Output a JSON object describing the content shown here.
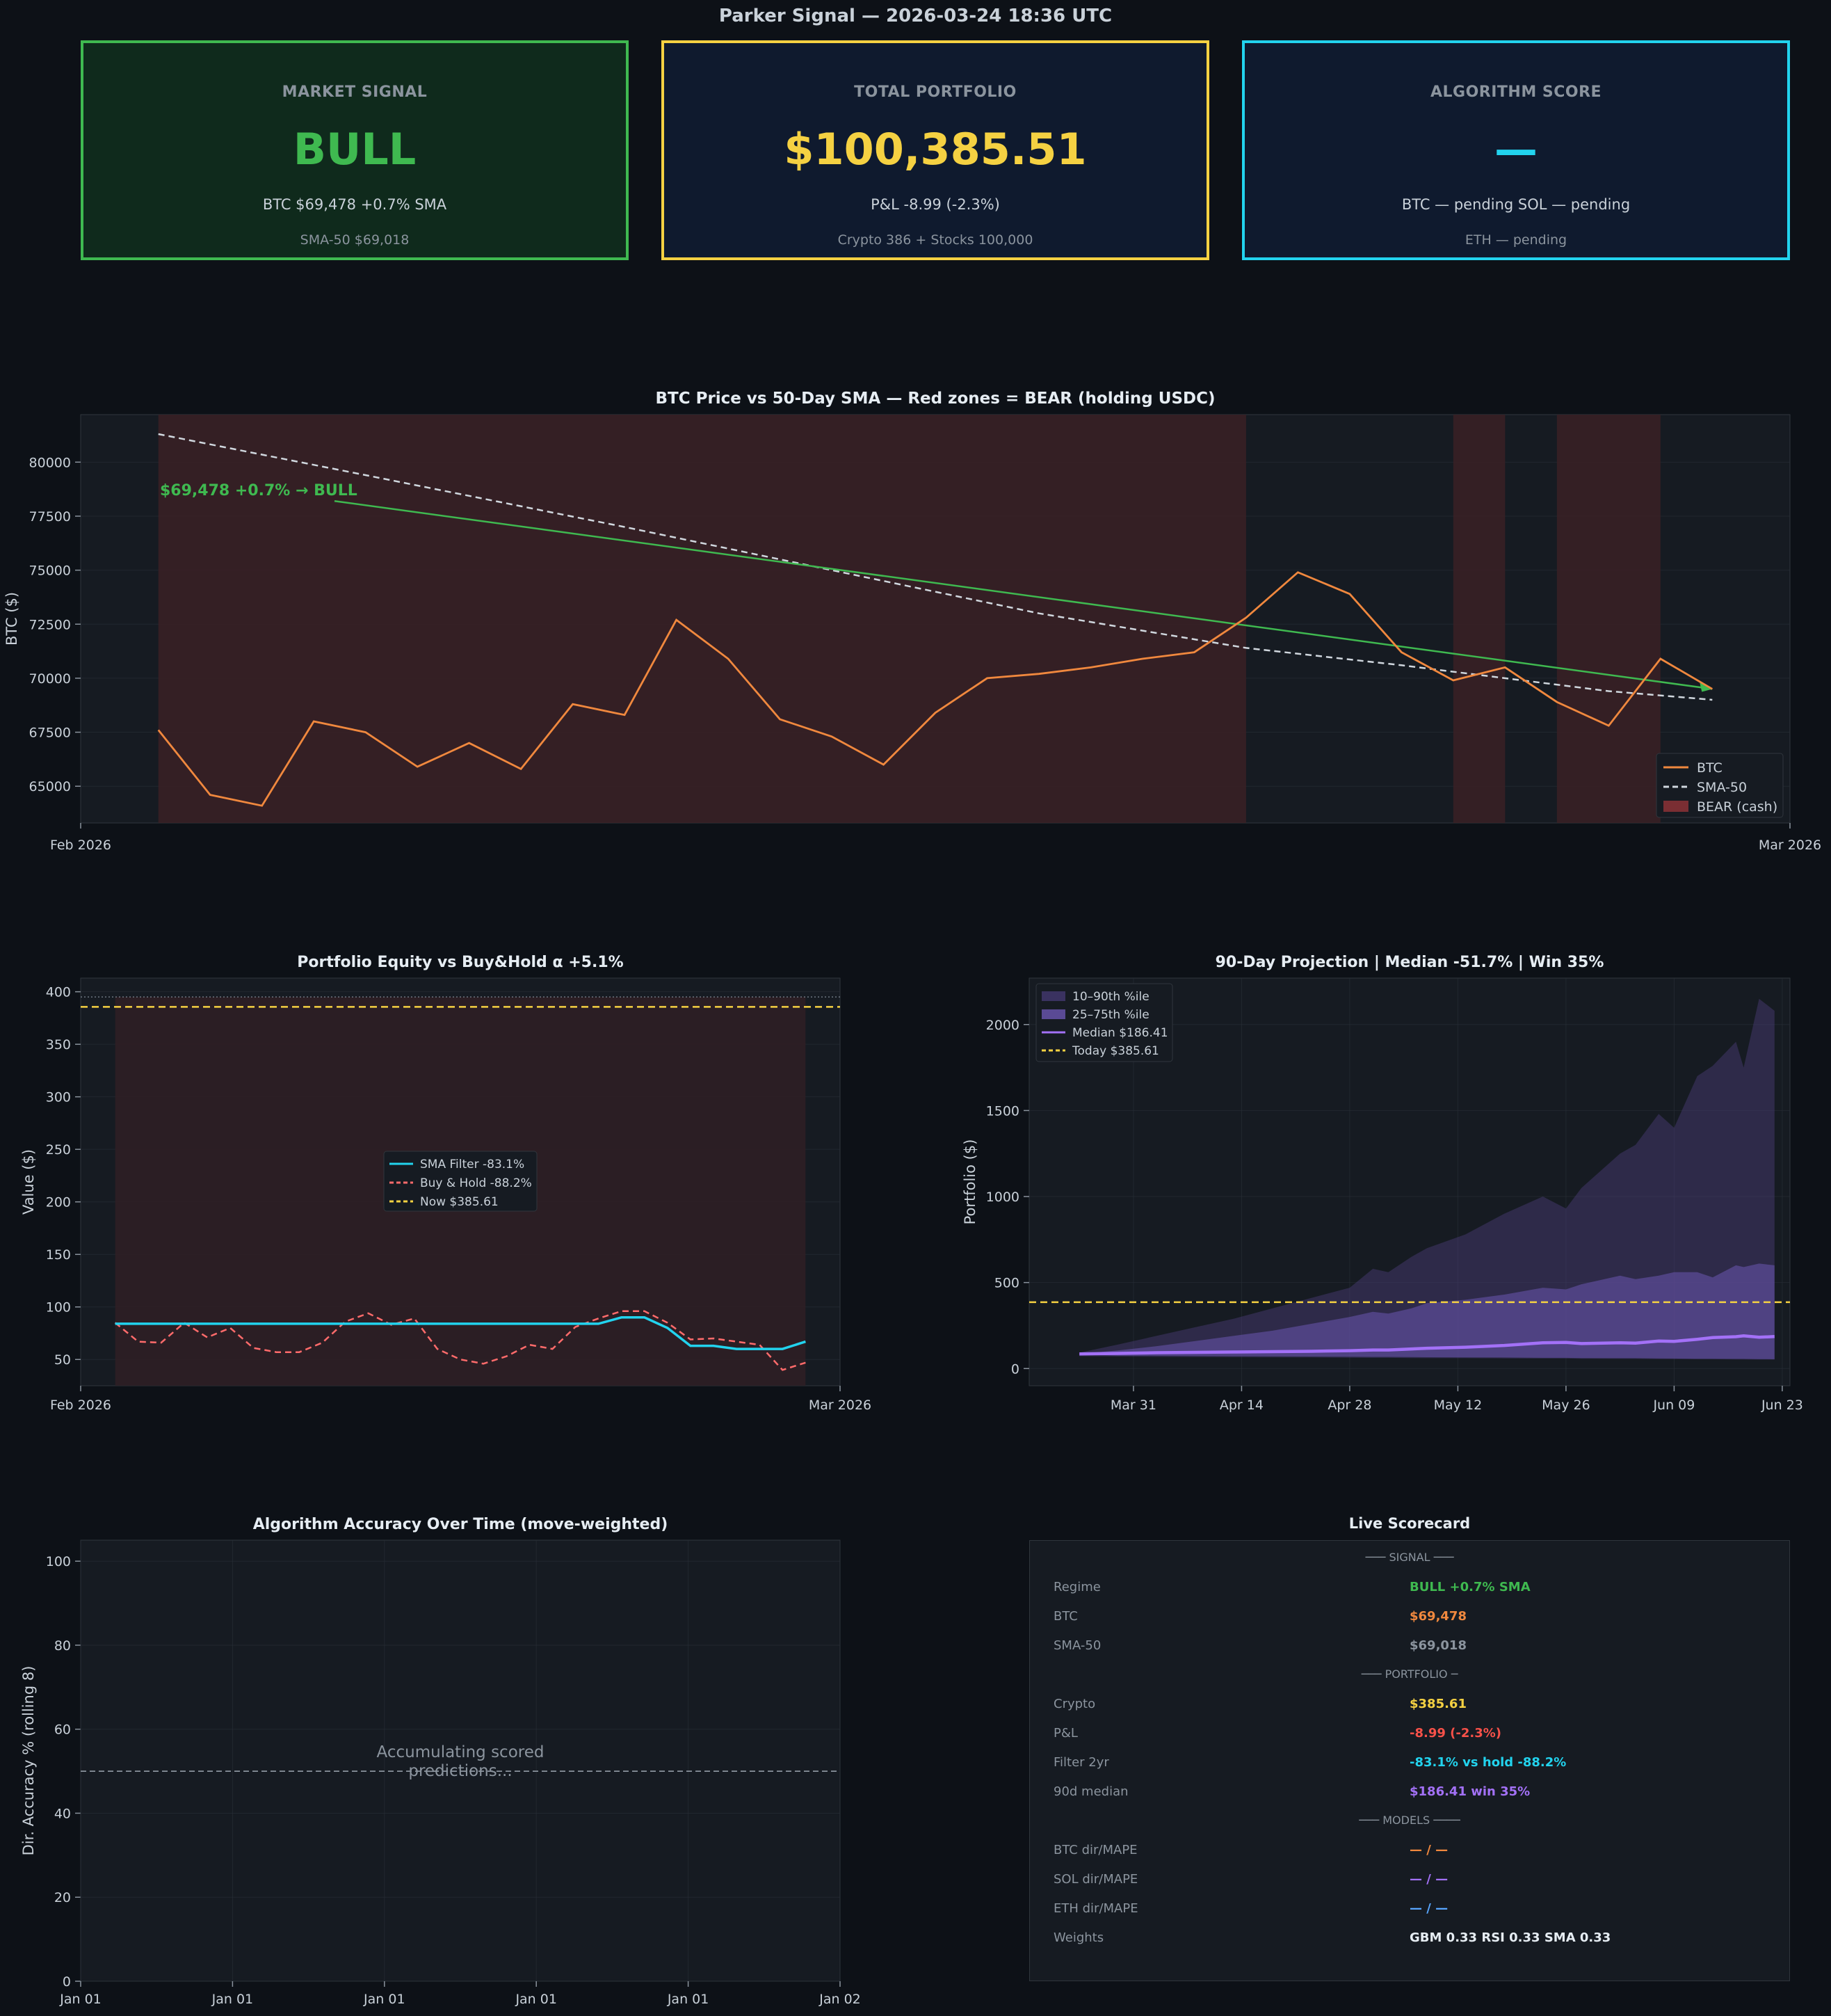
{
  "header": {
    "title": "Parker Signal  —  2026-03-24 18:36 UTC"
  },
  "cards": {
    "signal": {
      "label": "MARKET SIGNAL",
      "value": "BULL",
      "line1": "BTC $69,478   +0.7% SMA",
      "line2": "SMA-50  $69,018"
    },
    "portfolio": {
      "label": "TOTAL PORTFOLIO",
      "value": "$100,385.51",
      "line1": "P&L  -8.99  (-2.3%)",
      "line2": "Crypto 386 + Stocks 100,000"
    },
    "algo": {
      "label": "ALGORITHM SCORE",
      "value": "—",
      "line1": "BTC — pending   SOL — pending",
      "line2": "ETH — pending"
    }
  },
  "colors": {
    "bg": "#0d1117",
    "panel": "#161b22",
    "green": "#3fb950",
    "yellow": "#f5d142",
    "cyan": "#22d3ee",
    "orange": "#f0883e",
    "red": "#f85149",
    "purple": "#a371f7",
    "bear": "#3a2024"
  },
  "chart_data": [
    {
      "id": "btc",
      "type": "line",
      "title": "BTC Price vs 50-Day SMA  — Red zones = BEAR (holding USDC)",
      "ylabel": "BTC ($)",
      "xlabel": "",
      "ylim": [
        63300,
        82200
      ],
      "yticks": [
        65000,
        67500,
        70000,
        72500,
        75000,
        77500,
        80000
      ],
      "ytick_labels": [
        "65000",
        "67500",
        "70000",
        "72500",
        "75000",
        "77500",
        "80000"
      ],
      "xlim": [
        0,
        33
      ],
      "xtick_labels": [
        "Feb 2026",
        "Mar 2026"
      ],
      "series": [
        {
          "name": "BTC",
          "x": [
            1.5,
            2.5,
            3.5,
            4.5,
            5.5,
            6.5,
            7.5,
            8.5,
            9.5,
            10.5,
            11.5,
            12.5,
            13.5,
            14.5,
            15.5,
            16.5,
            17.5,
            18.5,
            19.5,
            20.5,
            21.5,
            22.5,
            23.5,
            24.5,
            25.5,
            26.5,
            27.5,
            28.5,
            29.5,
            30.5,
            31.5
          ],
          "values": [
            67600,
            64600,
            64100,
            68000,
            67500,
            65900,
            67000,
            65800,
            68800,
            68300,
            72700,
            70900,
            68100,
            67300,
            66000,
            68400,
            70000,
            70200,
            70500,
            70900,
            71200,
            72800,
            74900,
            73900,
            71200,
            69900,
            70500,
            68900,
            67800,
            70900,
            69500
          ]
        },
        {
          "name": "SMA-50",
          "x": [
            1.5,
            5.5,
            10.5,
            14.5,
            18.5,
            22.5,
            25.5,
            29.5,
            31.5
          ],
          "values": [
            81300,
            79400,
            77000,
            75000,
            73000,
            71400,
            70600,
            69400,
            69000
          ]
        }
      ],
      "trend": {
        "x": [
          4.9,
          31.5
        ],
        "values": [
          78200,
          69500
        ]
      },
      "annotation": "$69,478  +0.7%  →  BULL",
      "bear_zones": [
        [
          1.5,
          22.5
        ],
        [
          26.5,
          27.5
        ],
        [
          28.5,
          30.5
        ]
      ],
      "legend": [
        "BTC",
        "SMA-50",
        "BEAR (cash)"
      ]
    },
    {
      "id": "equity",
      "type": "line",
      "title": "Portfolio Equity vs Buy&Hold  α +5.1%",
      "ylabel": "Value ($)",
      "ylim": [
        25,
        413
      ],
      "yticks": [
        50,
        100,
        150,
        200,
        250,
        300,
        350,
        400
      ],
      "ytick_labels": [
        "50",
        "100",
        "150",
        "200",
        "250",
        "300",
        "350",
        "400"
      ],
      "xlim": [
        0,
        33
      ],
      "xtick_labels": [
        "Feb 2026",
        "Mar 2026"
      ],
      "series": [
        {
          "name": "SMA Filter  -83.1%",
          "values": [
            84,
            84,
            84,
            84,
            84,
            84,
            84,
            84,
            84,
            84,
            84,
            84,
            84,
            84,
            84,
            84,
            84,
            84,
            84,
            84,
            84,
            84,
            90,
            90,
            80,
            63,
            63,
            60,
            60,
            60,
            67
          ]
        },
        {
          "name": "Buy & Hold  -88.2%",
          "values": [
            85,
            67,
            66,
            85,
            71,
            80,
            61,
            57,
            57,
            66,
            86,
            94,
            83,
            89,
            60,
            50,
            46,
            53,
            64,
            60,
            81,
            89,
            96,
            96,
            85,
            69,
            70,
            67,
            64,
            40,
            47
          ]
        }
      ],
      "x": [
        1.5,
        2.5,
        3.5,
        4.5,
        5.5,
        6.5,
        7.5,
        8.5,
        9.5,
        10.5,
        11.5,
        12.5,
        13.5,
        14.5,
        15.5,
        16.5,
        17.5,
        18.5,
        19.5,
        20.5,
        21.5,
        22.5,
        23.5,
        24.5,
        25.5,
        26.5,
        27.5,
        28.5,
        29.5,
        30.5,
        31.5
      ],
      "now_line": 385.61,
      "top_line": 395,
      "bear_zone": [
        1.5,
        31.5
      ],
      "legend": [
        "SMA Filter  -83.1%",
        "Buy & Hold  -88.2%",
        "Now $385.61"
      ]
    },
    {
      "id": "projection",
      "type": "area",
      "title": "90-Day Projection  |  Median -51.7%  |  Win 35%",
      "ylabel": "Portfolio ($)",
      "ylim": [
        -100,
        2270
      ],
      "yticks": [
        0,
        500,
        1000,
        1500,
        2000
      ],
      "ytick_labels": [
        "0",
        "500",
        "1000",
        "1500",
        "2000"
      ],
      "xlim": [
        -6.5,
        92
      ],
      "xticks": [
        7,
        21,
        35,
        49,
        63,
        77,
        91
      ],
      "xtick_labels": [
        "Mar 31",
        "Apr 14",
        "Apr 28",
        "May 12",
        "May 26",
        "Jun 09",
        "Jun 23"
      ],
      "x": [
        0,
        5,
        10,
        15,
        20,
        25,
        30,
        35,
        38,
        40,
        43,
        45,
        50,
        55,
        60,
        63,
        65,
        70,
        72,
        75,
        77,
        80,
        82,
        85,
        86,
        88,
        90
      ],
      "p10": [
        72,
        70,
        68,
        67,
        66,
        65,
        64,
        63,
        62,
        62,
        61,
        60,
        60,
        59,
        58,
        58,
        57,
        56,
        56,
        55,
        55,
        54,
        54,
        53,
        53,
        52,
        52
      ],
      "p90": [
        92,
        140,
        190,
        240,
        290,
        350,
        410,
        470,
        580,
        560,
        650,
        700,
        780,
        900,
        1000,
        930,
        1050,
        1250,
        1300,
        1480,
        1400,
        1700,
        1760,
        1900,
        1750,
        2150,
        2080
      ],
      "p25": [
        80,
        75,
        74,
        73,
        72,
        71,
        70,
        69,
        68,
        68,
        67,
        66,
        65,
        64,
        62,
        62,
        61,
        60,
        60,
        59,
        58,
        57,
        57,
        56,
        56,
        55,
        54
      ],
      "p75": [
        86,
        105,
        130,
        160,
        190,
        220,
        260,
        300,
        330,
        320,
        350,
        380,
        400,
        430,
        470,
        460,
        490,
        540,
        520,
        540,
        560,
        560,
        530,
        600,
        590,
        610,
        600
      ],
      "median": [
        85,
        88,
        92,
        94,
        96,
        98,
        100,
        104,
        108,
        108,
        114,
        118,
        124,
        134,
        150,
        152,
        145,
        150,
        148,
        160,
        158,
        170,
        180,
        185,
        190,
        182,
        186
      ],
      "today": 385.61,
      "legend": [
        "10–90th %ile",
        "25–75th %ile",
        "Median $186.41",
        "Today $385.61"
      ]
    },
    {
      "id": "accuracy",
      "type": "line",
      "title": "Algorithm Accuracy Over Time  (move-weighted)",
      "ylabel": "Dir. Accuracy % (rolling 8)",
      "ylim": [
        0,
        105
      ],
      "yticks": [
        0,
        20,
        40,
        60,
        80,
        100
      ],
      "ytick_labels": [
        "0",
        "20",
        "40",
        "60",
        "80",
        "100"
      ],
      "xticks": [
        0,
        1,
        2,
        3,
        4,
        5
      ],
      "xtick_labels": [
        "Jan 01",
        "Jan 01",
        "Jan 01",
        "Jan 01",
        "Jan 01",
        "Jan 02"
      ],
      "reference": 50,
      "placeholder": [
        "Accumulating scored",
        "predictions..."
      ]
    }
  ],
  "scorecard": {
    "title": "Live Scorecard",
    "sections": [
      {
        "header": "─── SIGNAL ───",
        "rows": [
          {
            "label": "Regime",
            "value": "BULL  +0.7% SMA",
            "color": "#3fb950"
          },
          {
            "label": "BTC",
            "value": "$69,478",
            "color": "#f0883e"
          },
          {
            "label": "SMA-50",
            "value": "$69,018",
            "color": "#8b949e"
          }
        ]
      },
      {
        "header": "─── PORTFOLIO ─",
        "rows": [
          {
            "label": "Crypto",
            "value": "$385.61",
            "color": "#f5d142"
          },
          {
            "label": "P&L",
            "value": "-8.99 (-2.3%)",
            "color": "#f85149"
          },
          {
            "label": "Filter 2yr",
            "value": "-83.1%  vs hold -88.2%",
            "color": "#22d3ee"
          },
          {
            "label": "90d median",
            "value": "$186.41  win 35%",
            "color": "#a371f7"
          }
        ]
      },
      {
        "header": "─── MODELS ────",
        "rows": [
          {
            "label": "BTC dir/MAPE",
            "value": "— / —",
            "color": "#f0883e"
          },
          {
            "label": "SOL dir/MAPE",
            "value": "— / —",
            "color": "#a371f7"
          },
          {
            "label": "ETH dir/MAPE",
            "value": "— / —",
            "color": "#58a6ff"
          },
          {
            "label": "Weights",
            "value": "GBM 0.33  RSI 0.33  SMA 0.33",
            "color": "#e6edf3"
          }
        ]
      }
    ]
  }
}
